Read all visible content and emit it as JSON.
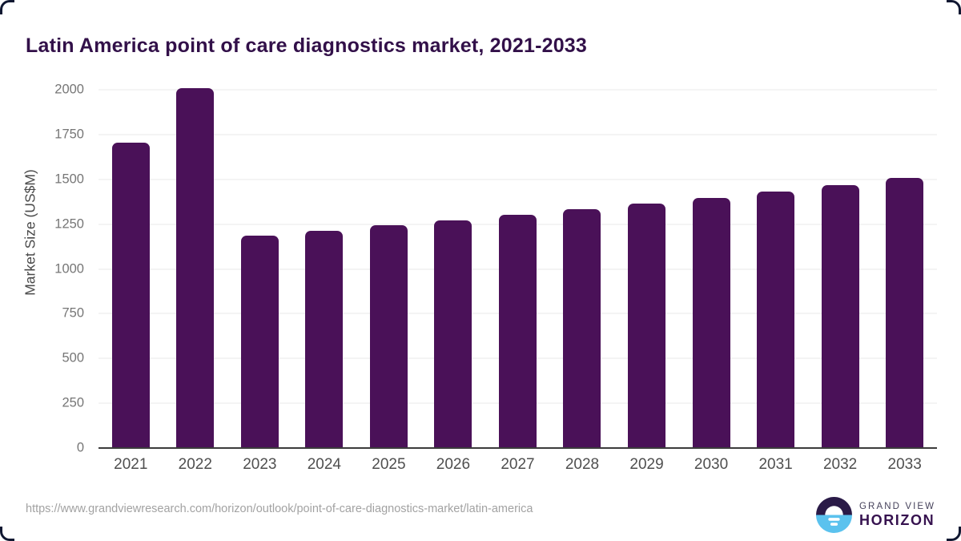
{
  "page": {
    "title": "Latin America point of care diagnostics market, 2021-2033"
  },
  "chart_data": {
    "type": "bar",
    "title": "Latin America point of care diagnostics market, 2021-2033",
    "categories": [
      "2021",
      "2022",
      "2023",
      "2024",
      "2025",
      "2026",
      "2027",
      "2028",
      "2029",
      "2030",
      "2031",
      "2032",
      "2033"
    ],
    "values": [
      1705,
      2007,
      1185,
      1213,
      1242,
      1271,
      1301,
      1332,
      1364,
      1397,
      1431,
      1468,
      1509
    ],
    "xlabel": "",
    "ylabel": "Market Size (US$M)",
    "ylim": [
      0,
      2000
    ],
    "ytick_step": 250,
    "grid": true,
    "legend": "none",
    "bar_color": "#4A1158"
  },
  "colors": {
    "bar": "#4A1158",
    "title_text": "#321049",
    "gridline": "#e8e8e8",
    "axis_line": "#3c3c3c",
    "tick_text": "#767676",
    "logo_dark_purple": "#2a1a47",
    "logo_light_blue": "#5bc2ee"
  },
  "footer": {
    "source_url": "https://www.grandviewresearch.com/horizon/outlook/point-of-care-diagnostics-market/latin-america",
    "logo": {
      "line1": "GRAND VIEW",
      "line2": "HORIZON"
    }
  }
}
